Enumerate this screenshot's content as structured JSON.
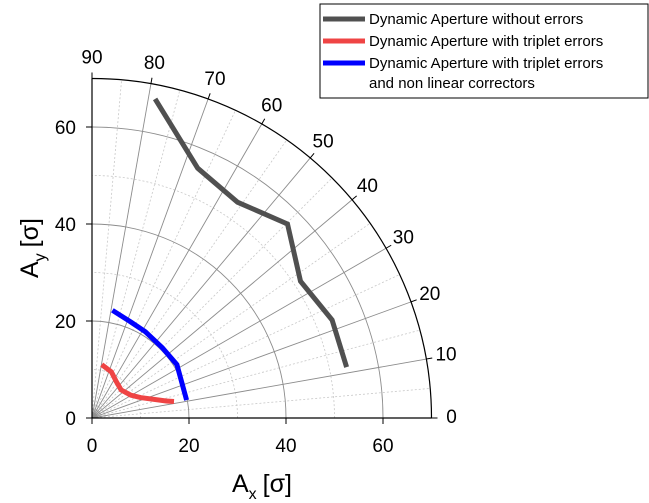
{
  "chart_data": {
    "type": "line",
    "coordinate_system": "polar-quarter",
    "xlabel": "A",
    "xlabel_sub": "x",
    "xlabel_unit": "[σ]",
    "ylabel": "A",
    "ylabel_sub": "y",
    "ylabel_unit": "[σ]",
    "xlim": [
      0,
      70
    ],
    "ylim": [
      0,
      70
    ],
    "x_ticks": [
      "0",
      "20",
      "40",
      "60"
    ],
    "y_ticks": [
      "0",
      "20",
      "40",
      "60"
    ],
    "angle_ticks": [
      "0",
      "10",
      "20",
      "30",
      "40",
      "50",
      "60",
      "70",
      "80",
      "90"
    ],
    "radial_grid": [
      20,
      40,
      60
    ],
    "grid": true,
    "legend_position": "top-right",
    "series": [
      {
        "name": "Dynamic Aperture without errors",
        "color": "#505050",
        "points": [
          [
            52.5,
            10.5
          ],
          [
            49.5,
            20.2
          ],
          [
            43.0,
            28.2
          ],
          [
            40.3,
            40.0
          ],
          [
            30.0,
            44.5
          ],
          [
            21.8,
            51.5
          ],
          [
            13.0,
            65.8
          ]
        ]
      },
      {
        "name": "Dynamic Aperture with triplet errors",
        "color": "#ef4444",
        "points": [
          [
            16.9,
            3.4
          ],
          [
            15.3,
            3.5
          ],
          [
            10.0,
            4.2
          ],
          [
            8.0,
            4.7
          ],
          [
            6.0,
            5.8
          ],
          [
            5.0,
            7.5
          ],
          [
            4.0,
            9.5
          ],
          [
            2.0,
            11.0
          ]
        ]
      },
      {
        "name": "Dynamic Aperture with triplet errors\nand non linear correctors",
        "color": "#0000ff",
        "points": [
          [
            19.5,
            3.7
          ],
          [
            17.5,
            11.0
          ],
          [
            14.5,
            14.5
          ],
          [
            11.0,
            17.8
          ],
          [
            8.0,
            19.8
          ],
          [
            4.2,
            22.2
          ]
        ]
      }
    ]
  }
}
